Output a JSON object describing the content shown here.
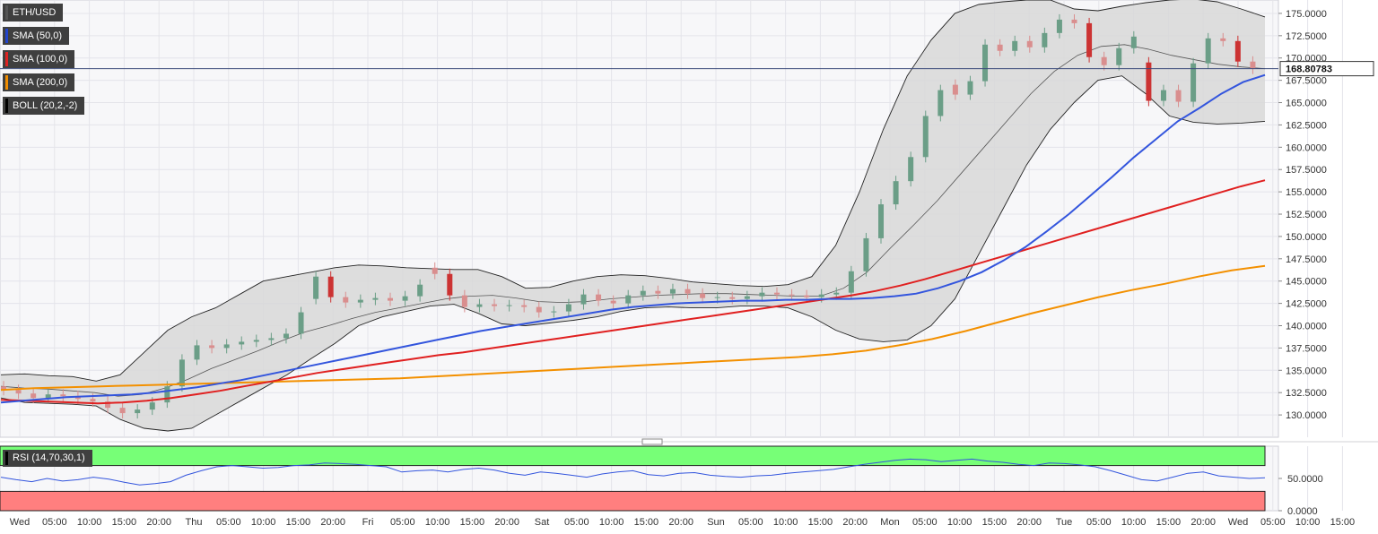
{
  "legend": [
    {
      "label": "ETH/USD",
      "color": "#555555"
    },
    {
      "label": "SMA (50,0)",
      "color": "#2244cc"
    },
    {
      "label": "SMA (100,0)",
      "color": "#dd2222"
    },
    {
      "label": "SMA (200,0)",
      "color": "#f08c00"
    },
    {
      "label": "BOLL (20,2,-2)",
      "color": "#000000"
    }
  ],
  "rsi_indicator": {
    "label": "RSI (14,70,30,1)",
    "overbought": 70,
    "oversold": 30
  },
  "current_price_tag": "168.80783",
  "colors": {
    "up": "#6b9e87",
    "down": "#d98e8e",
    "down_strong": "#cc3333",
    "sma50": "#3355dd",
    "sma100": "#e02020",
    "sma200": "#f39000",
    "band_fill": "#d8d8d8",
    "rsi_line": "#3355dd",
    "rsi_overbought_zone": "#77ff77",
    "rsi_oversold_zone": "#ff7f7f"
  },
  "chart_data": {
    "type": "line",
    "title": "",
    "x_ticks": [
      "Wed",
      "05:00",
      "10:00",
      "15:00",
      "20:00",
      "Thu",
      "05:00",
      "10:00",
      "15:00",
      "20:00",
      "Fri",
      "05:00",
      "10:00",
      "15:00",
      "20:00",
      "Sat",
      "05:00",
      "10:00",
      "15:00",
      "20:00",
      "Sun",
      "05:00",
      "10:00",
      "15:00",
      "20:00",
      "Mon",
      "05:00",
      "10:00",
      "15:00",
      "20:00",
      "Tue",
      "05:00",
      "10:00",
      "15:00",
      "20:00",
      "Wed",
      "05:00",
      "10:00",
      "15:00"
    ],
    "y_ticks": [
      "175.0000",
      "172.5000",
      "170.0000",
      "167.5000",
      "165.0000",
      "162.5000",
      "160.0000",
      "157.5000",
      "155.0000",
      "152.5000",
      "150.0000",
      "147.5000",
      "145.0000",
      "142.5000",
      "140.0000",
      "137.5000",
      "135.0000",
      "132.5000",
      "130.0000"
    ],
    "ylim": [
      127.5,
      176.5
    ],
    "last_price": 168.80783,
    "price_series": [
      {
        "name": "close",
        "values": [
          132.8,
          132.4,
          131.9,
          132.3,
          132.1,
          131.8,
          131.5,
          130.8,
          130.2,
          130.6,
          131.4,
          133.2,
          136.2,
          137.8,
          137.5,
          137.9,
          138.2,
          138.4,
          138.6,
          139.1,
          141.5,
          145.5,
          143.2,
          142.6,
          142.9,
          143.1,
          142.8,
          143.3,
          144.6,
          145.8,
          143.4,
          142.1,
          142.4,
          142.2,
          142.3,
          142.1,
          141.5,
          141.6,
          142.4,
          143.5,
          142.8,
          142.5,
          143.4,
          143.9,
          143.6,
          144.1,
          143.6,
          143.1,
          143.2,
          143.0,
          143.3,
          143.7,
          143.5,
          143.4,
          143.2,
          143.5,
          143.7,
          146.1,
          149.8,
          153.6,
          156.2,
          158.9,
          163.5,
          166.4,
          165.9,
          167.4,
          171.5,
          170.8,
          171.9,
          171.2,
          172.8,
          174.3,
          173.9,
          170.1,
          169.2,
          171.1,
          172.4,
          165.2,
          166.4,
          165.1,
          169.4,
          172.2,
          171.9,
          169.6,
          168.8
        ]
      },
      {
        "name": "open",
        "values": [
          133.2,
          132.8,
          132.4,
          131.9,
          132.3,
          132.1,
          131.8,
          131.5,
          130.8,
          130.2,
          130.6,
          131.4,
          133.2,
          136.2,
          137.8,
          137.5,
          137.9,
          138.2,
          138.4,
          138.6,
          139.1,
          143.0,
          145.5,
          143.2,
          142.6,
          142.9,
          143.1,
          142.8,
          143.3,
          146.5,
          145.8,
          143.4,
          142.1,
          142.4,
          142.2,
          142.3,
          142.1,
          141.5,
          141.6,
          142.4,
          143.5,
          142.8,
          142.5,
          143.4,
          143.9,
          143.6,
          144.1,
          143.6,
          143.1,
          143.2,
          143.0,
          143.3,
          143.7,
          143.5,
          143.4,
          143.2,
          143.5,
          143.7,
          146.1,
          149.8,
          153.6,
          156.2,
          158.9,
          163.5,
          167.0,
          165.9,
          167.4,
          171.5,
          170.8,
          171.9,
          171.2,
          172.8,
          174.3,
          173.9,
          170.1,
          169.2,
          171.1,
          169.5,
          165.2,
          166.4,
          165.1,
          169.4,
          172.2,
          171.9,
          169.6
        ]
      }
    ],
    "series": [
      {
        "name": "SMA (50,0)",
        "values": [
          131.4,
          131.6,
          131.8,
          132.0,
          132.1,
          132.2,
          132.3,
          132.5,
          132.8,
          133.1,
          133.5,
          133.9,
          134.4,
          134.9,
          135.4,
          135.9,
          136.4,
          136.9,
          137.4,
          137.9,
          138.4,
          138.9,
          139.4,
          139.8,
          140.2,
          140.6,
          141.0,
          141.4,
          141.8,
          142.1,
          142.3,
          142.5,
          142.6,
          142.7,
          142.8,
          142.8,
          142.9,
          142.9,
          143.0,
          143.0,
          143.1,
          143.3,
          143.6,
          144.2,
          145.0,
          146.0,
          147.3,
          148.8,
          150.6,
          152.5,
          154.6,
          156.7,
          158.9,
          160.9,
          162.9,
          164.4,
          166.0,
          167.3,
          168.1
        ]
      },
      {
        "name": "SMA (100,0)",
        "values": [
          131.7,
          131.6,
          131.5,
          131.4,
          131.3,
          131.4,
          131.6,
          131.9,
          132.3,
          132.7,
          133.2,
          133.7,
          134.2,
          134.7,
          135.1,
          135.5,
          135.9,
          136.3,
          136.7,
          137.0,
          137.4,
          137.8,
          138.2,
          138.6,
          139.0,
          139.4,
          139.8,
          140.2,
          140.6,
          141.0,
          141.4,
          141.8,
          142.2,
          142.6,
          143.0,
          143.4,
          143.9,
          144.5,
          145.2,
          146.0,
          146.8,
          147.6,
          148.4,
          149.2,
          150.0,
          150.8,
          151.6,
          152.4,
          153.2,
          154.0,
          154.8,
          155.6,
          156.3
        ]
      },
      {
        "name": "SMA (200,0)",
        "values": [
          132.8,
          133.0,
          133.1,
          133.2,
          133.3,
          133.4,
          133.5,
          133.6,
          133.7,
          133.8,
          133.9,
          134.0,
          134.1,
          134.3,
          134.5,
          134.7,
          134.9,
          135.1,
          135.3,
          135.5,
          135.7,
          135.9,
          136.1,
          136.3,
          136.5,
          136.8,
          137.2,
          137.8,
          138.5,
          139.4,
          140.4,
          141.4,
          142.3,
          143.2,
          144.0,
          144.7,
          145.5,
          146.2,
          146.7
        ]
      },
      {
        "name": "BOLL upper",
        "values": [
          134.5,
          134.6,
          134.4,
          134.3,
          133.8,
          134.5,
          137.0,
          139.5,
          141.0,
          142.0,
          143.5,
          145.0,
          145.5,
          146.0,
          146.5,
          146.8,
          146.7,
          146.5,
          146.4,
          146.3,
          146.3,
          145.5,
          144.2,
          144.3,
          145.0,
          145.5,
          145.7,
          145.6,
          145.3,
          144.9,
          144.7,
          144.5,
          144.4,
          144.6,
          145.5,
          149.0,
          155.0,
          162.0,
          168.0,
          172.0,
          175.0,
          176.0,
          176.3,
          176.5,
          176.5,
          175.5,
          175.3,
          175.8,
          176.2,
          176.5,
          176.6,
          176.3,
          175.5,
          174.6
        ]
      },
      {
        "name": "BOLL middle",
        "values": [
          133.2,
          133.0,
          132.9,
          132.7,
          132.5,
          132.1,
          132.3,
          133.0,
          134.0,
          135.2,
          136.2,
          137.2,
          138.3,
          139.3,
          140.0,
          140.8,
          141.5,
          142.0,
          142.5,
          143.0,
          143.3,
          143.4,
          143.1,
          142.7,
          142.6,
          142.7,
          143.0,
          143.2,
          143.4,
          143.5,
          143.6,
          143.6,
          143.5,
          143.4,
          143.3,
          143.3,
          144.2,
          146.0,
          148.7,
          151.3,
          154.0,
          157.0,
          160.0,
          163.0,
          166.0,
          168.5,
          170.3,
          171.3,
          171.5,
          171.0,
          170.3,
          169.8,
          169.3,
          169.0,
          168.8
        ]
      },
      {
        "name": "BOLL lower",
        "values": [
          131.9,
          131.4,
          131.3,
          131.2,
          131.0,
          129.5,
          128.5,
          128.2,
          128.5,
          130.0,
          131.5,
          133.0,
          134.5,
          136.3,
          138.0,
          140.0,
          141.0,
          141.6,
          142.2,
          142.4,
          141.4,
          140.2,
          140.0,
          140.3,
          140.6,
          141.0,
          141.6,
          142.0,
          142.1,
          142.0,
          142.0,
          142.2,
          142.2,
          142.0,
          141.0,
          139.5,
          138.5,
          138.2,
          138.4,
          140.0,
          143.0,
          148.0,
          153.0,
          158.0,
          162.0,
          165.0,
          167.5,
          168.0,
          166.0,
          163.5,
          162.8,
          162.6,
          162.7,
          162.9
        ]
      }
    ],
    "rsi": {
      "ylim": [
        0,
        100
      ],
      "y_ticks": [
        "50.0000",
        "0.0000"
      ],
      "values": [
        52,
        48,
        45,
        50,
        46,
        48,
        52,
        49,
        44,
        40,
        42,
        45,
        55,
        62,
        68,
        70,
        68,
        66,
        67,
        70,
        71,
        74,
        73,
        72,
        70,
        68,
        60,
        62,
        63,
        60,
        64,
        66,
        63,
        58,
        55,
        60,
        58,
        55,
        52,
        57,
        60,
        62,
        56,
        54,
        58,
        59,
        55,
        53,
        52,
        54,
        55,
        58,
        60,
        62,
        64,
        68,
        72,
        75,
        78,
        80,
        79,
        76,
        78,
        80,
        77,
        75,
        72,
        70,
        74,
        73,
        71,
        68,
        62,
        55,
        48,
        46,
        52,
        58,
        60,
        54,
        52,
        50,
        51
      ]
    }
  }
}
